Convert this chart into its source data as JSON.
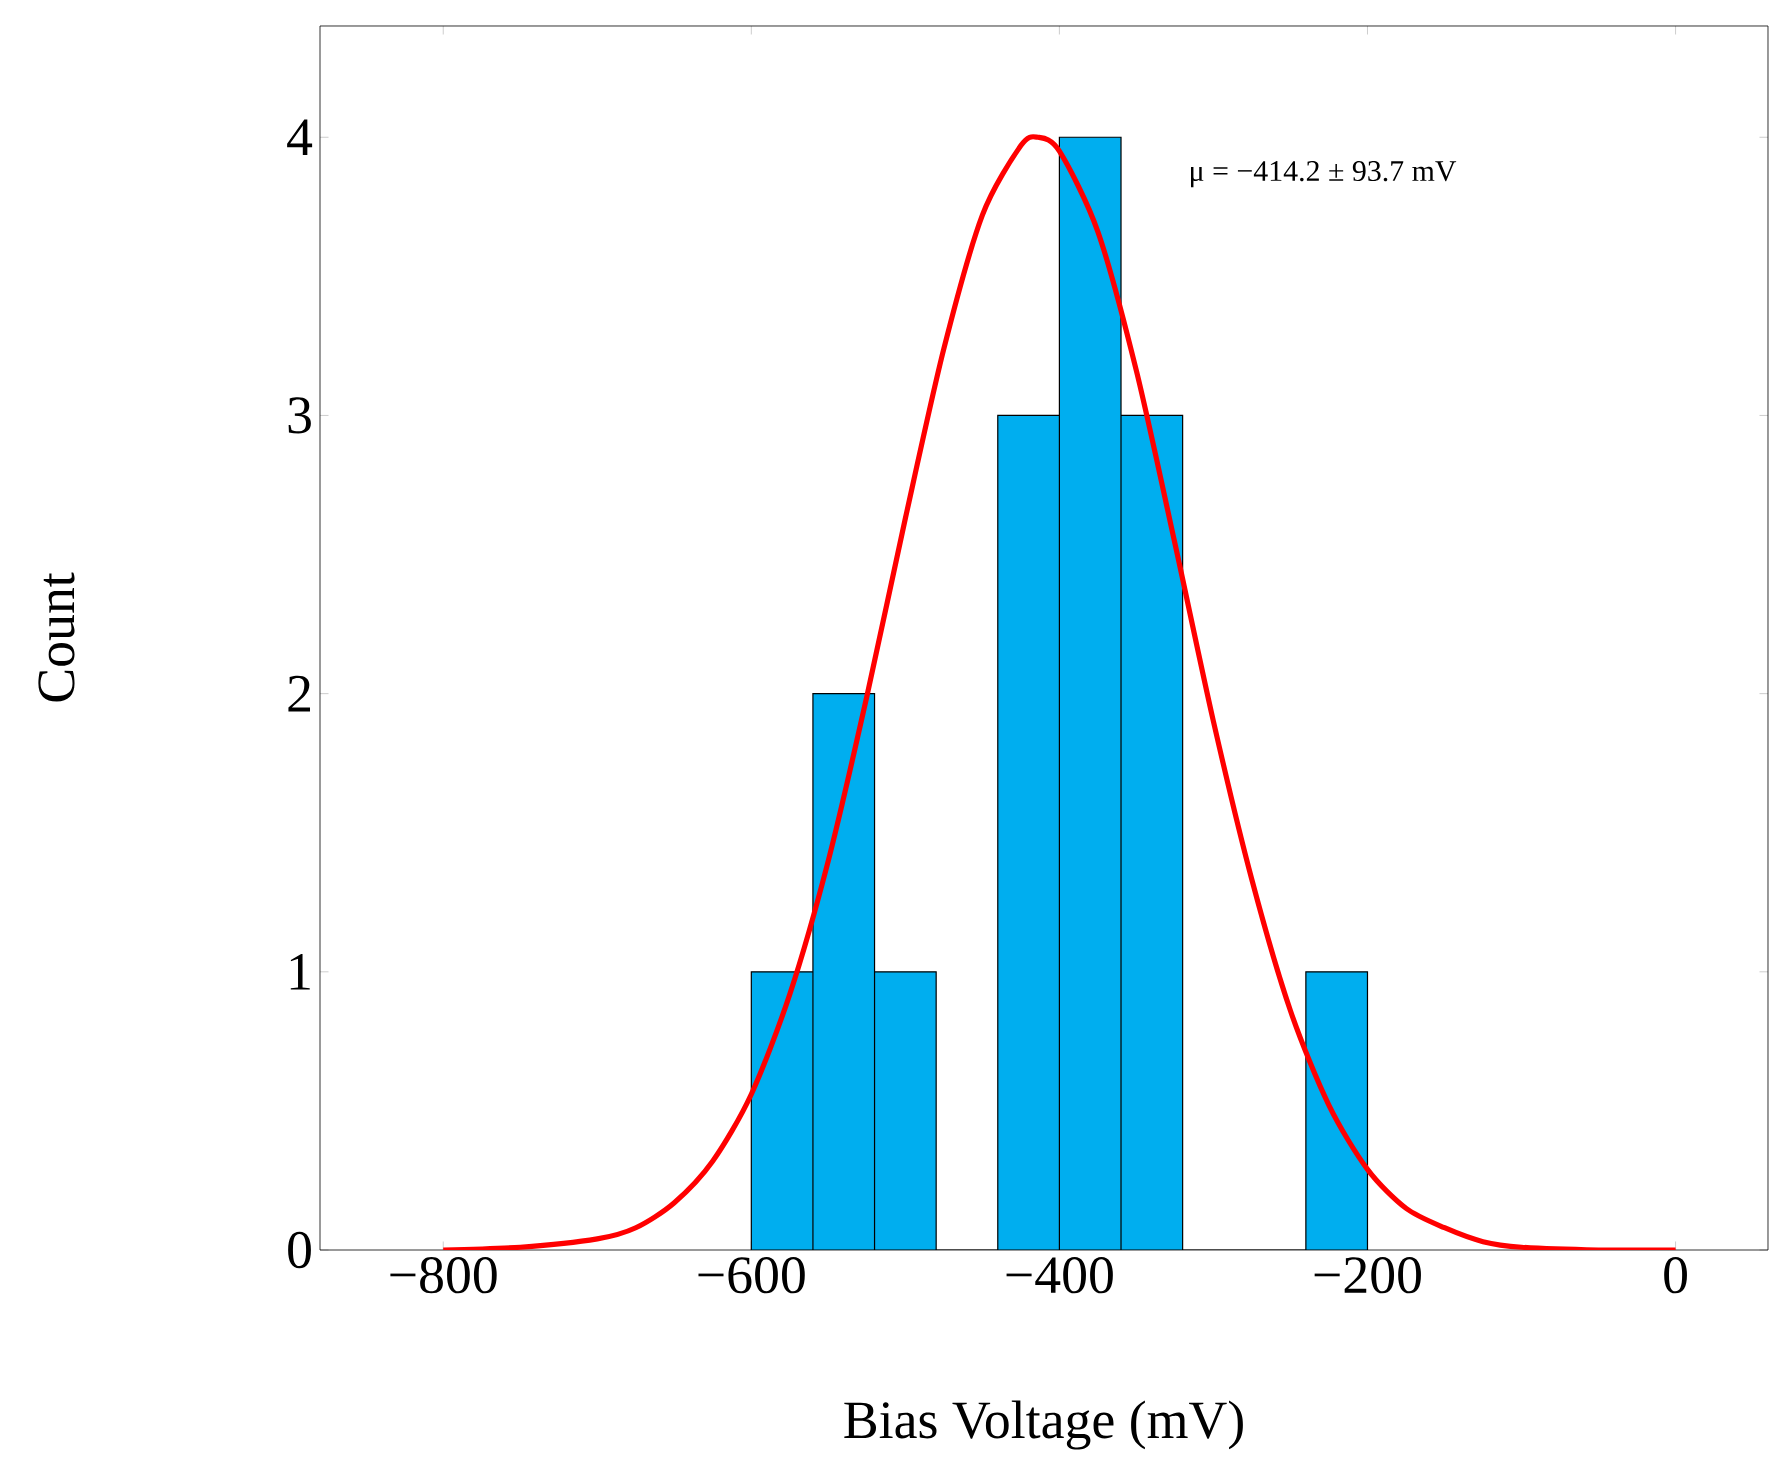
{
  "chart_data": {
    "type": "histogram",
    "xlabel": "Bias Voltage (mV)",
    "ylabel": "Count",
    "xlim": [
      -880,
      60
    ],
    "ylim": [
      0,
      4.4
    ],
    "xticks": [
      {
        "value": -800,
        "label": "−800"
      },
      {
        "value": -600,
        "label": "−600"
      },
      {
        "value": -400,
        "label": "−400"
      },
      {
        "value": -200,
        "label": "−200"
      },
      0
    ],
    "yticks": [
      0,
      1,
      2,
      3,
      4
    ],
    "grid": false,
    "annotations": [
      "μ = −414.2 ± 93.7 mV"
    ],
    "series": [
      {
        "color": "#00aeef",
        "bins": [
          -600,
          -560,
          -520,
          -480,
          -440,
          -400,
          -360,
          -320,
          -280,
          -240,
          -200
        ],
        "values": [
          1,
          2,
          1,
          0,
          3,
          4,
          3,
          0,
          0,
          1
        ]
      },
      {
        "type": "line",
        "color": "#ff0000",
        "x": [
          -800,
          -750,
          -700,
          -675,
          -650,
          -625,
          -600,
          -575,
          -550,
          -525,
          -500,
          -475,
          -450,
          -425,
          -414,
          -400,
          -375,
          -350,
          -325,
          -300,
          -275,
          -250,
          -225,
          -200,
          -175,
          -150,
          -125,
          -100,
          -50,
          0
        ],
        "values": [
          0,
          0.01,
          0.04,
          0.08,
          0.17,
          0.32,
          0.56,
          0.92,
          1.4,
          1.99,
          2.63,
          3.24,
          3.72,
          3.97,
          4,
          3.95,
          3.66,
          3.16,
          2.54,
          1.9,
          1.33,
          0.86,
          0.52,
          0.29,
          0.15,
          0.08,
          0.03,
          0.01,
          0,
          0
        ]
      }
    ]
  }
}
